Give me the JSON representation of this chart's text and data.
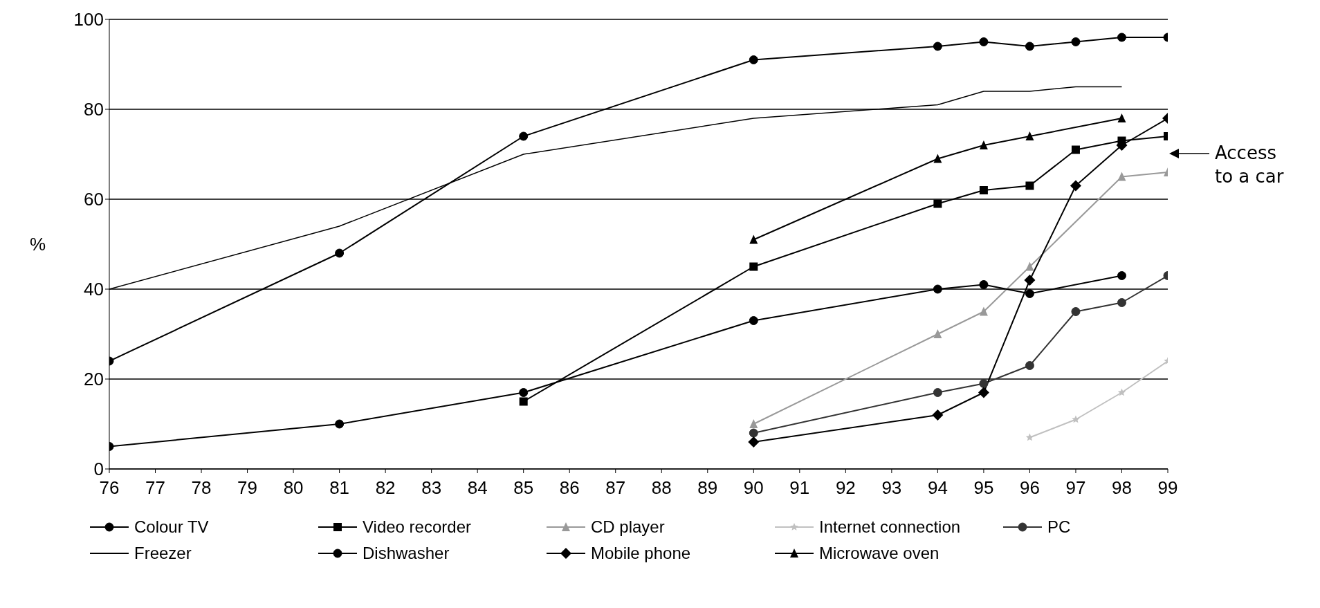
{
  "chart_data": {
    "type": "line",
    "ylabel": "%",
    "xlim": [
      76,
      99
    ],
    "xticks": [
      76,
      77,
      78,
      79,
      80,
      81,
      82,
      83,
      84,
      85,
      86,
      87,
      88,
      89,
      90,
      91,
      92,
      93,
      94,
      95,
      96,
      97,
      98,
      99
    ],
    "ylim": [
      0,
      100
    ],
    "yticks": [
      0,
      20,
      40,
      60,
      80,
      100
    ],
    "grid": "y",
    "legend": "bottom",
    "annotations": [
      "Access to a car"
    ],
    "series": [
      {
        "name": "Colour TV",
        "color": "#000000",
        "marker": "circle",
        "x": [
          76,
          81,
          85,
          90,
          94,
          95,
          96,
          97,
          98,
          99
        ],
        "values": [
          24,
          48,
          74,
          91,
          94,
          95,
          94,
          95,
          96,
          96
        ]
      },
      {
        "name": "Video recorder",
        "color": "#000000",
        "marker": "square",
        "x": [
          85,
          90,
          94,
          95,
          96,
          97,
          98,
          99
        ],
        "values": [
          15,
          45,
          59,
          62,
          63,
          71,
          73,
          74
        ]
      },
      {
        "name": "CD player",
        "color": "#999999",
        "marker": "triangle",
        "x": [
          90,
          94,
          95,
          96,
          98,
          99
        ],
        "values": [
          10,
          30,
          35,
          45,
          65,
          66
        ]
      },
      {
        "name": "Internet connection",
        "color": "#c0c0c0",
        "marker": "star",
        "x": [
          96,
          97,
          98,
          99
        ],
        "values": [
          7,
          11,
          17,
          24
        ]
      },
      {
        "name": "PC",
        "color": "#333333",
        "marker": "circle",
        "x": [
          90,
          94,
          95,
          96,
          97,
          98,
          99
        ],
        "values": [
          8,
          17,
          19,
          23,
          35,
          37,
          43
        ]
      },
      {
        "name": "Freezer",
        "color": "#000000",
        "marker": "none",
        "x": [
          76,
          81,
          85,
          90,
          94,
          95,
          96,
          97,
          98
        ],
        "values": [
          40,
          54,
          70,
          78,
          81,
          84,
          84,
          85,
          85
        ]
      },
      {
        "name": "Dishwasher",
        "color": "#000000",
        "marker": "circle",
        "x": [
          76,
          81,
          85,
          90,
          94,
          95,
          96,
          98
        ],
        "values": [
          5,
          10,
          17,
          33,
          40,
          41,
          39,
          43
        ]
      },
      {
        "name": "Mobile phone",
        "color": "#000000",
        "marker": "diamond",
        "x": [
          90,
          94,
          95,
          96,
          97,
          98,
          99
        ],
        "values": [
          6,
          12,
          17,
          42,
          63,
          72,
          78
        ]
      },
      {
        "name": "Microwave oven",
        "color": "#000000",
        "marker": "triangle",
        "x": [
          90,
          94,
          95,
          96,
          98
        ],
        "values": [
          51,
          69,
          72,
          74,
          78
        ]
      }
    ]
  }
}
